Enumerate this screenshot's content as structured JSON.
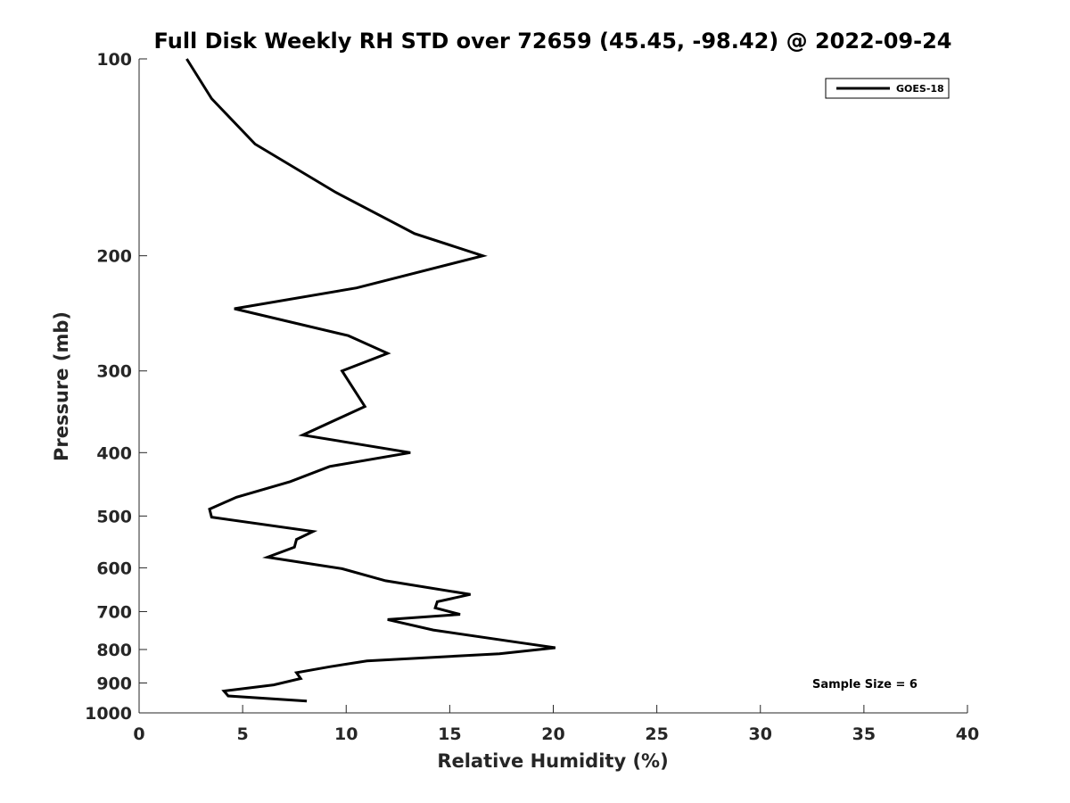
{
  "chart_data": {
    "type": "line",
    "title": "Full Disk Weekly RH STD over 72659 (45.45, -98.42) @ 2022-09-24",
    "xlabel": "Relative Humidity (%)",
    "ylabel": "Pressure (mb)",
    "xlim": [
      0,
      40
    ],
    "ylim": [
      100,
      1000
    ],
    "yscale": "log",
    "y_reversed": true,
    "x_ticks": [
      "0",
      "5",
      "10",
      "15",
      "20",
      "25",
      "30",
      "35",
      "40"
    ],
    "y_ticks": [
      "100",
      "200",
      "300",
      "400",
      "500",
      "600",
      "700",
      "800",
      "900",
      "1000"
    ],
    "grid": false,
    "legend_position": "top-right",
    "annotation": "Sample Size = 6",
    "series": [
      {
        "name": "GOES-18",
        "color": "#000000",
        "x": [
          2.3,
          3.5,
          5.6,
          9.5,
          13.3,
          16.6,
          10.5,
          4.6,
          10.1,
          12.0,
          9.8,
          10.9,
          7.9,
          13.1,
          9.2,
          7.3,
          4.7,
          3.4,
          3.5,
          8.4,
          7.6,
          7.5,
          6.2,
          9.8,
          11.9,
          16.0,
          14.4,
          14.3,
          15.5,
          12.0,
          14.2,
          18.4,
          20.1,
          17.4,
          11.0,
          9.2,
          7.6,
          7.8,
          6.5,
          4.1,
          4.3,
          8.1
        ],
        "y": [
          100,
          115,
          135,
          160,
          185,
          200,
          224,
          241,
          265,
          282,
          300,
          340,
          376,
          400,
          420,
          443,
          468,
          488,
          502,
          528,
          543,
          558,
          578,
          602,
          628,
          659,
          676,
          691,
          707,
          720,
          747,
          781,
          795,
          812,
          833,
          850,
          868,
          886,
          906,
          926,
          942,
          959
        ]
      }
    ]
  }
}
